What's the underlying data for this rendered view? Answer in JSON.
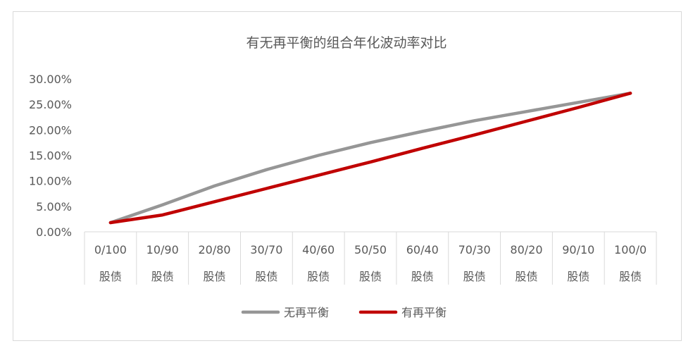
{
  "chart_data": {
    "type": "line",
    "title": "有无再平衡的组合年化波动率对比",
    "xlabel": "",
    "ylabel": "",
    "categories": [
      [
        "0/100",
        "股债"
      ],
      [
        "10/90",
        "股债"
      ],
      [
        "20/80",
        "股债"
      ],
      [
        "30/70",
        "股债"
      ],
      [
        "40/60",
        "股债"
      ],
      [
        "50/50",
        "股债"
      ],
      [
        "60/40",
        "股债"
      ],
      [
        "70/30",
        "股债"
      ],
      [
        "80/20",
        "股债"
      ],
      [
        "90/10",
        "股债"
      ],
      [
        "100/0",
        "股债"
      ]
    ],
    "ylim": [
      0,
      30
    ],
    "yticks": [
      "0.00%",
      "5.00%",
      "10.00%",
      "15.00%",
      "20.00%",
      "25.00%",
      "30.00%"
    ],
    "series": [
      {
        "name": "无再平衡",
        "color": "#969696",
        "values": [
          1.8,
          5.3,
          9.0,
          12.2,
          15.0,
          17.5,
          19.7,
          21.8,
          23.6,
          25.4,
          27.2
        ]
      },
      {
        "name": "有再平衡",
        "color": "#c00000",
        "values": [
          1.8,
          3.3,
          5.9,
          8.5,
          11.1,
          13.7,
          16.4,
          19.0,
          21.7,
          24.4,
          27.2
        ]
      }
    ],
    "grid": false,
    "legend_position": "bottom"
  }
}
